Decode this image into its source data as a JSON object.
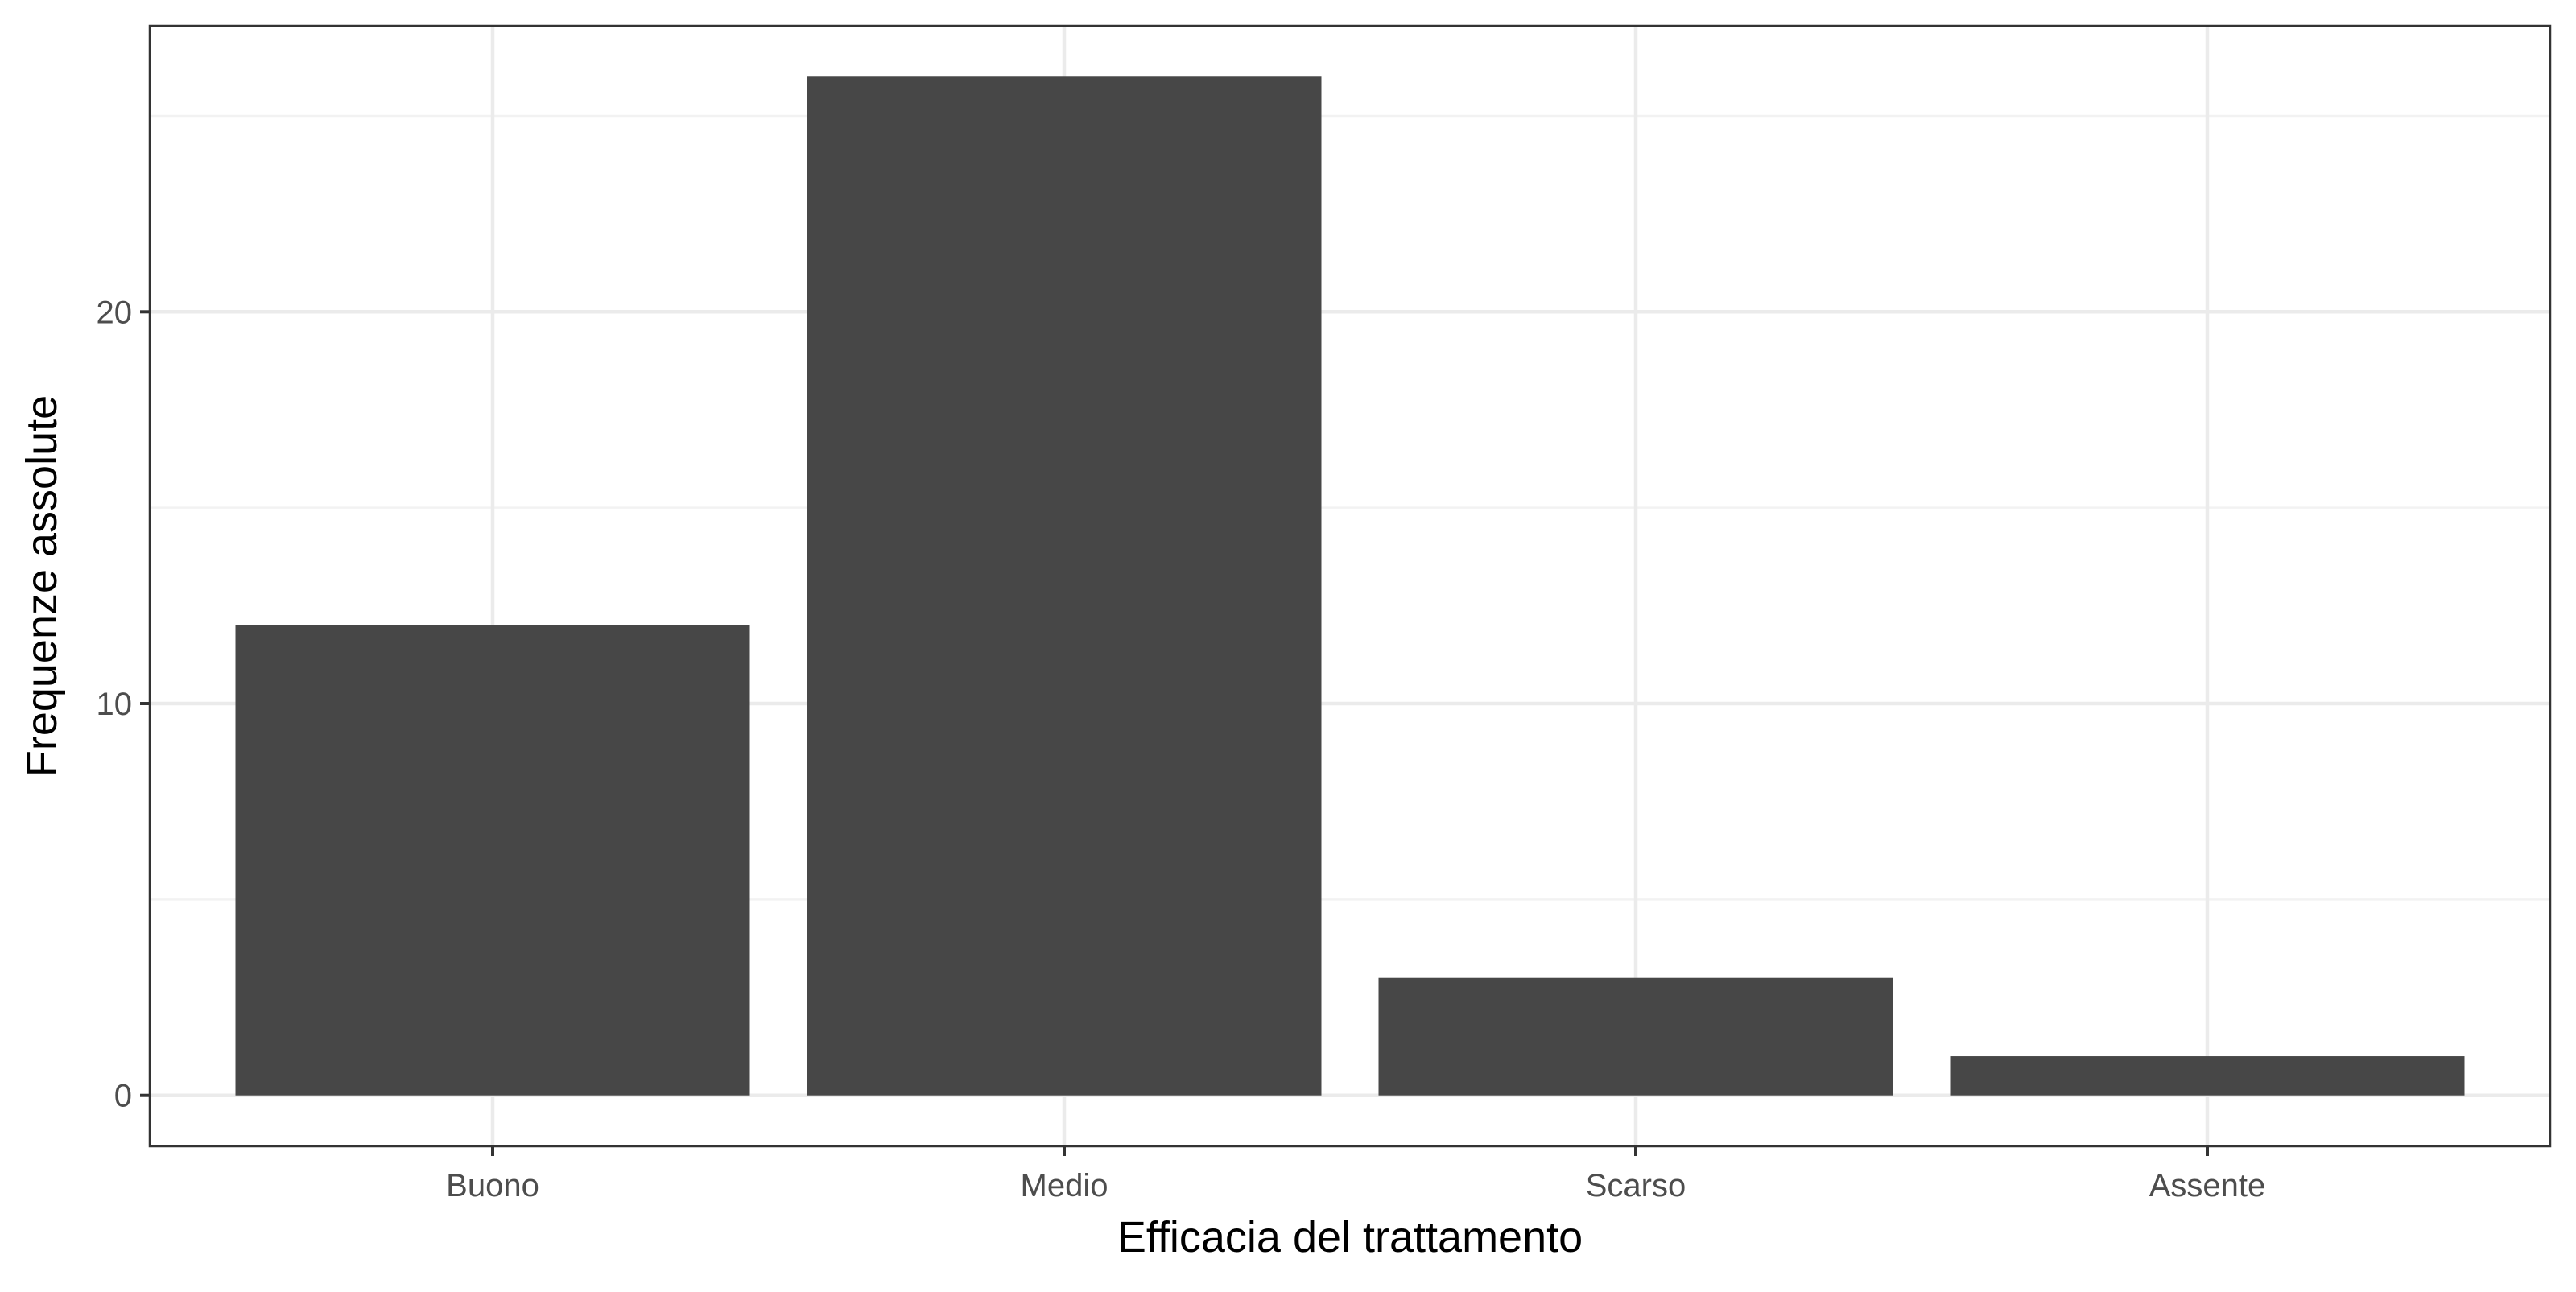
{
  "chart_data": {
    "type": "bar",
    "title": "",
    "xlabel": "Efficacia del trattamento",
    "ylabel": "Frequenze assolute",
    "categories": [
      "Buono",
      "Medio",
      "Scarso",
      "Assente"
    ],
    "values": [
      12,
      26,
      3,
      1
    ],
    "ylim": [
      -1.3,
      27.3
    ],
    "y_ticks": [
      0,
      10,
      20
    ],
    "y_tick_labels": [
      "0",
      "10",
      "20"
    ],
    "grid": true,
    "legend": "none",
    "colors": {
      "bar": "#474747",
      "panel_border": "#333333",
      "grid_major": "#ebebeb",
      "grid_minor": "#f2f2f2",
      "tick_label": "#4d4d4d",
      "axis_title": "#000000"
    }
  }
}
